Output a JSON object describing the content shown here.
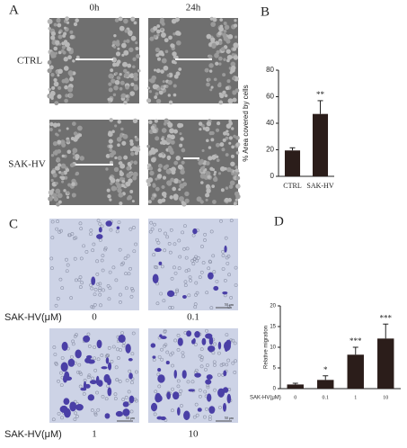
{
  "panel_labels": [
    "A",
    "B",
    "C",
    "D"
  ],
  "panel_a": {
    "columns": [
      "0h",
      "24h"
    ],
    "rows": [
      "CTRL",
      "SAK-HV"
    ]
  },
  "panel_c": {
    "dose_label": "SAK-HV(μM)",
    "doses": [
      "0",
      "0.1",
      "1",
      "10"
    ],
    "scale_bar": "50 μm"
  },
  "chart_data": [
    {
      "type": "bar",
      "ylabel": "% Area covered by cells",
      "categories": [
        "CTRL",
        "SAK-HV"
      ],
      "values": [
        19.5,
        47
      ],
      "errors": [
        2,
        10
      ],
      "annotations": [
        null,
        "**"
      ],
      "ylim": [
        0,
        80
      ],
      "yticks": [
        0,
        20,
        40,
        60,
        80
      ],
      "color": "#2b1d1a"
    },
    {
      "type": "bar",
      "ylabel": "Relative migration",
      "xlabel": "SAK-HV(μM)",
      "categories": [
        "0",
        "0.1",
        "1",
        "10"
      ],
      "values": [
        1,
        2.1,
        8.2,
        12.1
      ],
      "errors": [
        0.3,
        1,
        1.8,
        3.5
      ],
      "annotations": [
        null,
        "*",
        "***",
        "***"
      ],
      "ylim": [
        0,
        20
      ],
      "yticks": [
        0,
        5,
        10,
        15,
        20
      ],
      "color": "#2b1d1a"
    }
  ]
}
